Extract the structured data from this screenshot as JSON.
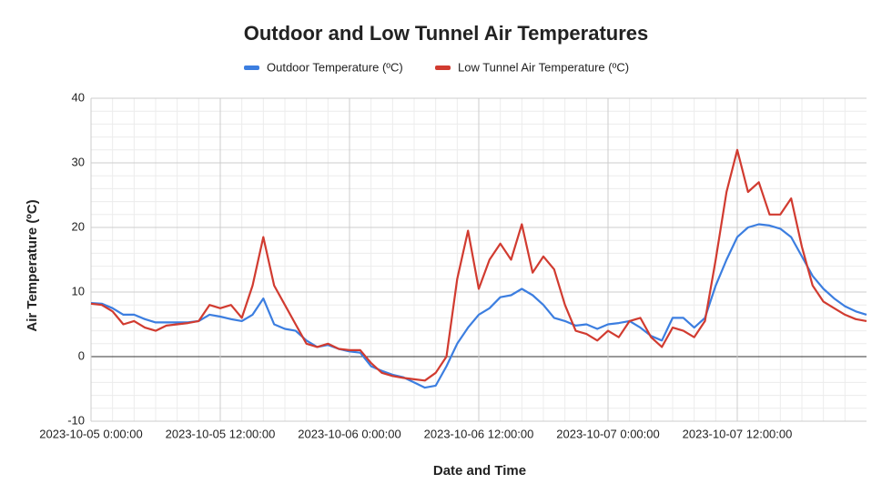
{
  "chart_data": {
    "type": "line",
    "title": "Outdoor and Low Tunnel Air Temperatures",
    "x_label": "Date and Time",
    "y_label": "Air Temperature (ºC)",
    "x": [
      "2023-10-05 0:00:00",
      "2023-10-05 1:00:00",
      "2023-10-05 2:00:00",
      "2023-10-05 3:00:00",
      "2023-10-05 4:00:00",
      "2023-10-05 5:00:00",
      "2023-10-05 6:00:00",
      "2023-10-05 7:00:00",
      "2023-10-05 8:00:00",
      "2023-10-05 9:00:00",
      "2023-10-05 10:00:00",
      "2023-10-05 11:00:00",
      "2023-10-05 12:00:00",
      "2023-10-05 13:00:00",
      "2023-10-05 14:00:00",
      "2023-10-05 15:00:00",
      "2023-10-05 16:00:00",
      "2023-10-05 17:00:00",
      "2023-10-05 18:00:00",
      "2023-10-05 19:00:00",
      "2023-10-05 20:00:00",
      "2023-10-05 21:00:00",
      "2023-10-05 22:00:00",
      "2023-10-05 23:00:00",
      "2023-10-06 0:00:00",
      "2023-10-06 1:00:00",
      "2023-10-06 2:00:00",
      "2023-10-06 3:00:00",
      "2023-10-06 4:00:00",
      "2023-10-06 5:00:00",
      "2023-10-06 6:00:00",
      "2023-10-06 7:00:00",
      "2023-10-06 8:00:00",
      "2023-10-06 9:00:00",
      "2023-10-06 10:00:00",
      "2023-10-06 11:00:00",
      "2023-10-06 12:00:00",
      "2023-10-06 13:00:00",
      "2023-10-06 14:00:00",
      "2023-10-06 15:00:00",
      "2023-10-06 16:00:00",
      "2023-10-06 17:00:00",
      "2023-10-06 18:00:00",
      "2023-10-06 19:00:00",
      "2023-10-06 20:00:00",
      "2023-10-06 21:00:00",
      "2023-10-06 22:00:00",
      "2023-10-06 23:00:00",
      "2023-10-07 0:00:00",
      "2023-10-07 1:00:00",
      "2023-10-07 2:00:00",
      "2023-10-07 3:00:00",
      "2023-10-07 4:00:00",
      "2023-10-07 5:00:00",
      "2023-10-07 6:00:00",
      "2023-10-07 7:00:00",
      "2023-10-07 8:00:00",
      "2023-10-07 9:00:00",
      "2023-10-07 10:00:00",
      "2023-10-07 11:00:00",
      "2023-10-07 12:00:00",
      "2023-10-07 13:00:00",
      "2023-10-07 14:00:00",
      "2023-10-07 15:00:00",
      "2023-10-07 16:00:00",
      "2023-10-07 17:00:00",
      "2023-10-07 18:00:00",
      "2023-10-07 19:00:00",
      "2023-10-07 20:00:00",
      "2023-10-07 21:00:00",
      "2023-10-07 22:00:00",
      "2023-10-07 23:00:00",
      "2023-10-08 0:00:00"
    ],
    "series": [
      {
        "name": "Outdoor Temperature (ºC)",
        "color": "#3c7ee0",
        "values": [
          8.3,
          8.2,
          7.5,
          6.5,
          6.5,
          5.8,
          5.3,
          5.3,
          5.3,
          5.3,
          5.5,
          6.5,
          6.2,
          5.8,
          5.5,
          6.5,
          9,
          5,
          4.3,
          4,
          2.5,
          1.5,
          1.8,
          1.2,
          0.8,
          0.6,
          -1.5,
          -2.2,
          -2.8,
          -3.2,
          -4,
          -4.8,
          -4.5,
          -1.5,
          2,
          4.5,
          6.5,
          7.5,
          9.2,
          9.5,
          10.5,
          9.5,
          8,
          6,
          5.5,
          4.8,
          5,
          4.3,
          5,
          5.2,
          5.5,
          4.5,
          3.2,
          2.5,
          6,
          6,
          4.5,
          6,
          11,
          15,
          18.5,
          20,
          20.5,
          20.3,
          19.8,
          18.5,
          15.5,
          12.5,
          10.5,
          9,
          7.8,
          7,
          6.5
        ]
      },
      {
        "name": "Low Tunnel Air Temperature (ºC)",
        "color": "#d13b30",
        "values": [
          8.2,
          8,
          7,
          5,
          5.5,
          4.5,
          4,
          4.8,
          5,
          5.2,
          5.5,
          8,
          7.5,
          8,
          6,
          11,
          18.5,
          11,
          8,
          5,
          2,
          1.5,
          2,
          1.2,
          1,
          1,
          -1,
          -2.5,
          -3,
          -3.3,
          -3.5,
          -3.7,
          -2.5,
          0,
          12,
          19.5,
          10.5,
          15,
          17.5,
          15,
          20.5,
          13,
          15.5,
          13.5,
          8,
          4,
          3.5,
          2.5,
          4,
          3,
          5.5,
          6,
          3,
          1.5,
          4.5,
          4,
          3,
          5.5,
          15,
          25.5,
          32,
          25.5,
          27,
          22,
          22,
          24.5,
          17,
          11,
          8.5,
          7.5,
          6.5,
          5.8,
          5.5
        ]
      }
    ],
    "xlim": [
      "2023-10-05 0:00:00",
      "2023-10-08 0:00:00"
    ],
    "xticks": [
      "2023-10-05 0:00:00",
      "2023-10-05 12:00:00",
      "2023-10-06 0:00:00",
      "2023-10-06 12:00:00",
      "2023-10-07 0:00:00",
      "2023-10-07 12:00:00"
    ],
    "ylim": [
      -10,
      40
    ],
    "yticks": [
      -10,
      0,
      10,
      20,
      30,
      40
    ],
    "grid": true,
    "legend": "top"
  }
}
